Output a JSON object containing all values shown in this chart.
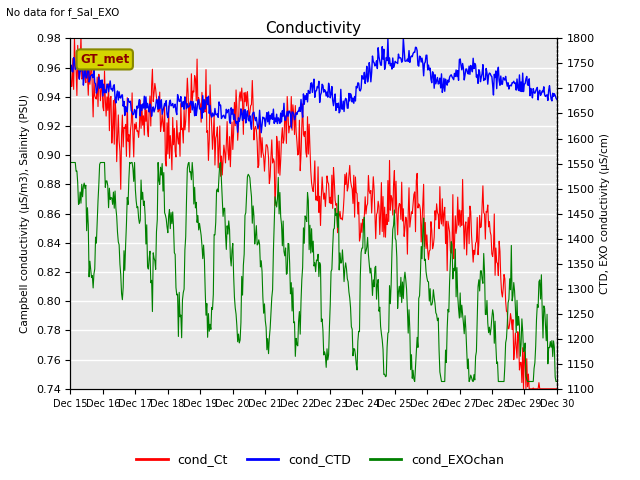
{
  "title": "Conductivity",
  "top_left_text": "No data for f_Sal_EXO",
  "annotation_text": "GT_met",
  "ylabel_left": "Campbell conductivity (μS/m3), Salinity (PSU)",
  "ylabel_right": "CTD, EXO conductivity (μS/cm)",
  "ylim_left": [
    0.74,
    0.98
  ],
  "ylim_right": [
    1100,
    1800
  ],
  "yticks_left": [
    0.74,
    0.76,
    0.78,
    0.8,
    0.82,
    0.84,
    0.86,
    0.88,
    0.9,
    0.92,
    0.94,
    0.96,
    0.98
  ],
  "yticks_right": [
    1100,
    1150,
    1200,
    1250,
    1300,
    1350,
    1400,
    1450,
    1500,
    1550,
    1600,
    1650,
    1700,
    1750,
    1800
  ],
  "xtick_labels": [
    "Dec 15",
    "Dec 16",
    "Dec 17",
    "Dec 18",
    "Dec 19",
    "Dec 20",
    "Dec 21",
    "Dec 22",
    "Dec 23",
    "Dec 24",
    "Dec 25",
    "Dec 26",
    "Dec 27",
    "Dec 28",
    "Dec 29",
    "Dec 30"
  ],
  "legend_labels": [
    "cond_Ct",
    "cond_CTD",
    "cond_EXOchan"
  ],
  "legend_colors": [
    "red",
    "blue",
    "green"
  ],
  "color_Ct": "red",
  "color_CTD": "blue",
  "color_EXO": "green",
  "bg_color": "#e8e8e8",
  "grid_color": "white",
  "annotation_bg": "#d4d400",
  "annotation_border": "#888800"
}
